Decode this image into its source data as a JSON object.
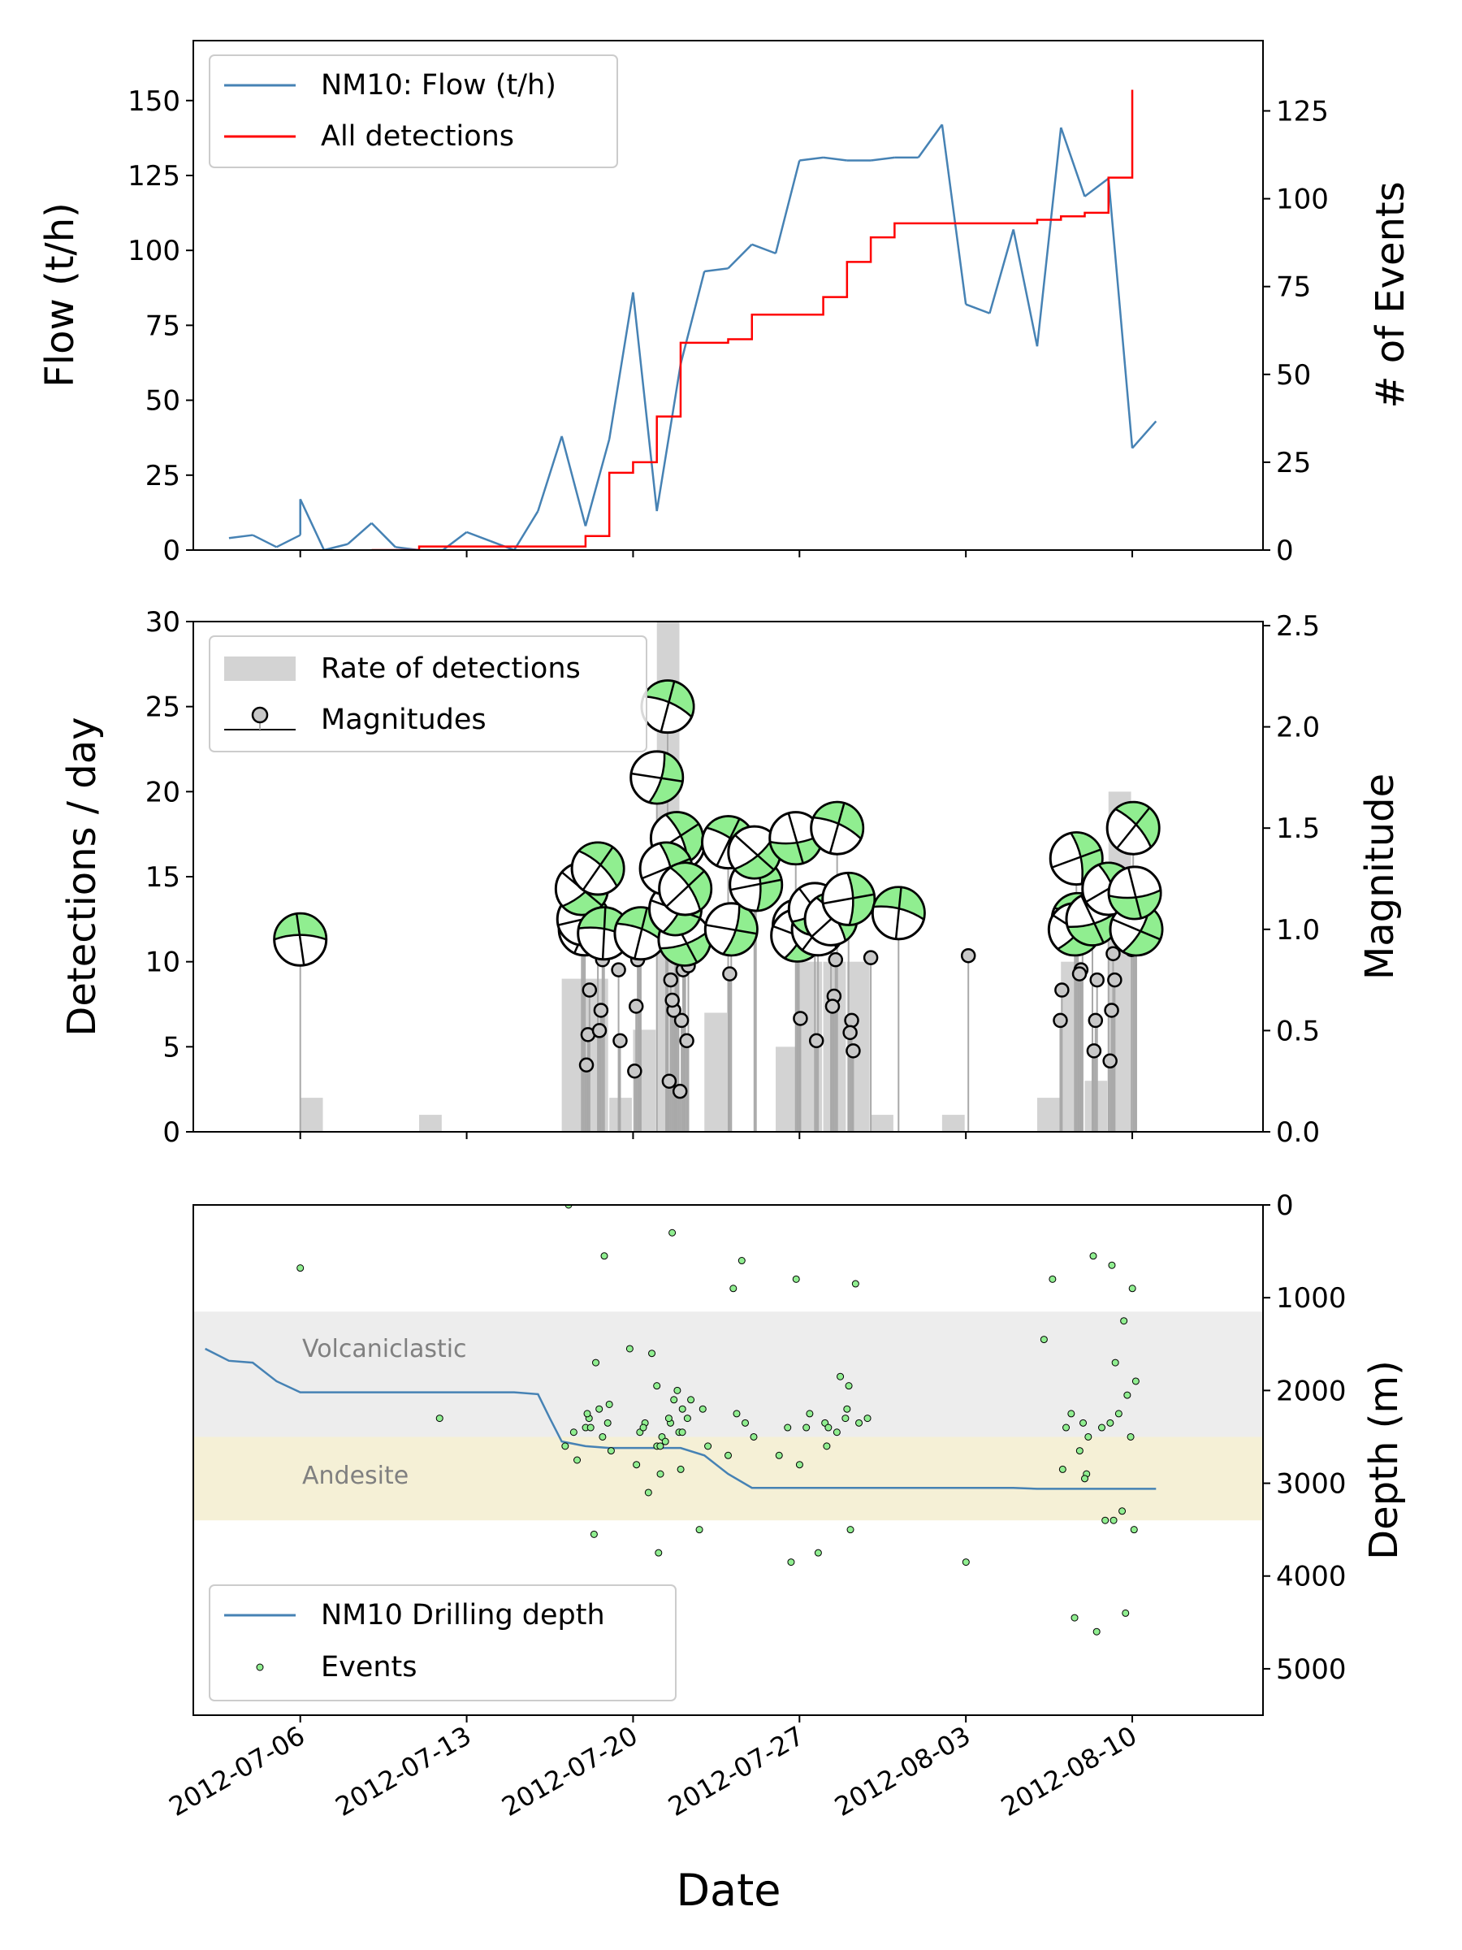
{
  "chart_data": [
    {
      "type": "line",
      "ylabel": "Flow (t/h)",
      "ylabel_right": "# of Events",
      "ylim": [
        0,
        170
      ],
      "ylim_right": [
        0,
        145
      ],
      "yticks": [
        "0",
        "25",
        "50",
        "75",
        "100",
        "125",
        "150"
      ],
      "yticks_right": [
        "0",
        "25",
        "50",
        "75",
        "100",
        "125"
      ],
      "legend": {
        "placement": "top-left",
        "items": [
          "NM10: Flow (t/h)",
          "All detections"
        ]
      },
      "colors": {
        "flow": "#4682b4",
        "detections": "#ff0000"
      },
      "series": [
        {
          "name": "NM10: Flow (t/h)",
          "axis": "left",
          "x": [
            "2012-07-03",
            "2012-07-04",
            "2012-07-05",
            "2012-07-06",
            "2012-07-06",
            "2012-07-07",
            "2012-07-08",
            "2012-07-09",
            "2012-07-10",
            "2012-07-11",
            "2012-07-12",
            "2012-07-13",
            "2012-07-14",
            "2012-07-15",
            "2012-07-16",
            "2012-07-17",
            "2012-07-18",
            "2012-07-19",
            "2012-07-20",
            "2012-07-21",
            "2012-07-22",
            "2012-07-23",
            "2012-07-24",
            "2012-07-25",
            "2012-07-26",
            "2012-07-27",
            "2012-07-28",
            "2012-07-29",
            "2012-07-30",
            "2012-07-31",
            "2012-08-01",
            "2012-08-02",
            "2012-08-03",
            "2012-08-04",
            "2012-08-05",
            "2012-08-06",
            "2012-08-07",
            "2012-08-08",
            "2012-08-09",
            "2012-08-10",
            "2012-08-11"
          ],
          "values": [
            4,
            5,
            1,
            5,
            17,
            0,
            2,
            9,
            1,
            0,
            0,
            6,
            3,
            0,
            13,
            38,
            8,
            37,
            86,
            13,
            62,
            93,
            94,
            102,
            99,
            130,
            131,
            130,
            130,
            131,
            131,
            142,
            82,
            79,
            107,
            68,
            141,
            118,
            124,
            34,
            43
          ]
        },
        {
          "name": "All detections",
          "axis": "right",
          "x": [
            "2012-07-09",
            "2012-07-11",
            "2012-07-17",
            "2012-07-18",
            "2012-07-19",
            "2012-07-19",
            "2012-07-20",
            "2012-07-21",
            "2012-07-22",
            "2012-07-23",
            "2012-07-24",
            "2012-07-25",
            "2012-07-26",
            "2012-07-27",
            "2012-07-28",
            "2012-07-29",
            "2012-07-30",
            "2012-07-31",
            "2012-08-01",
            "2012-08-02",
            "2012-08-03",
            "2012-08-04",
            "2012-08-05",
            "2012-08-06",
            "2012-08-07",
            "2012-08-08",
            "2012-08-09",
            "2012-08-10",
            "2012-08-10"
          ],
          "values": [
            0,
            1,
            1,
            4,
            20,
            22,
            25,
            38,
            59,
            59,
            60,
            67,
            67,
            67,
            72,
            82,
            89,
            93,
            93,
            93,
            93,
            93,
            93,
            94,
            95,
            96,
            106,
            111,
            131
          ]
        }
      ]
    },
    {
      "type": "bar",
      "ylabel": "Detections / day",
      "ylabel_right": "Magnitude",
      "ylim": [
        0,
        30
      ],
      "ylim_right": [
        0,
        2.52
      ],
      "yticks": [
        "0",
        "5",
        "10",
        "15",
        "20",
        "25",
        "30"
      ],
      "yticks_right": [
        "0.0",
        "0.5",
        "1.0",
        "1.5",
        "2.0",
        "2.5"
      ],
      "legend": {
        "placement": "top-left",
        "items": [
          "Rate of detections",
          "Magnitudes"
        ]
      },
      "colors": {
        "bars": "#d3d3d3",
        "stems": "#a9a9a9",
        "markers": "#c8c8c8",
        "beachball": "#90ee90"
      },
      "series": [
        {
          "name": "Rate of detections",
          "categories": [
            "2012-07-06",
            "2012-07-11",
            "2012-07-17",
            "2012-07-18",
            "2012-07-19",
            "2012-07-20",
            "2012-07-21",
            "2012-07-22",
            "2012-07-23",
            "2012-07-24",
            "2012-07-25",
            "2012-07-26",
            "2012-07-27",
            "2012-07-28",
            "2012-07-29",
            "2012-07-30",
            "2012-07-31",
            "2012-08-01",
            "2012-08-02",
            "2012-08-03",
            "2012-08-04",
            "2012-08-05",
            "2012-08-06",
            "2012-08-07",
            "2012-08-08",
            "2012-08-09",
            "2012-08-10"
          ],
          "values": [
            2,
            1,
            9,
            9,
            2,
            6,
            30,
            0,
            7,
            0,
            0,
            5,
            10,
            10,
            10,
            1,
            0,
            0,
            1,
            0,
            0,
            0,
            2,
            10,
            3,
            20,
            0
          ]
        },
        {
          "name": "Magnitudes",
          "x": [
            "2012-07-06",
            "2012-07-17",
            "2012-07-17",
            "2012-07-17",
            "2012-07-17",
            "2012-07-17",
            "2012-07-17",
            "2012-07-18",
            "2012-07-18",
            "2012-07-18",
            "2012-07-18",
            "2012-07-18",
            "2012-07-19",
            "2012-07-19",
            "2012-07-20",
            "2012-07-20",
            "2012-07-20",
            "2012-07-20",
            "2012-07-20",
            "2012-07-21",
            "2012-07-21",
            "2012-07-21",
            "2012-07-21",
            "2012-07-21",
            "2012-07-21",
            "2012-07-21",
            "2012-07-21",
            "2012-07-21",
            "2012-07-21",
            "2012-07-21",
            "2012-07-21",
            "2012-07-21",
            "2012-07-21",
            "2012-07-22",
            "2012-07-22",
            "2012-07-22",
            "2012-07-24",
            "2012-07-24",
            "2012-07-24",
            "2012-07-24",
            "2012-07-24",
            "2012-07-26",
            "2012-07-26",
            "2012-07-26",
            "2012-07-26",
            "2012-07-27",
            "2012-07-27",
            "2012-07-27",
            "2012-07-28",
            "2012-07-28",
            "2012-07-28",
            "2012-07-28",
            "2012-07-28",
            "2012-07-29",
            "2012-07-29",
            "2012-07-29",
            "2012-07-29",
            "2012-07-30",
            "2012-07-30",
            "2012-08-02",
            "2012-08-06",
            "2012-08-06",
            "2012-08-07",
            "2012-08-07",
            "2012-08-07",
            "2012-08-07",
            "2012-08-07",
            "2012-08-07",
            "2012-08-08",
            "2012-08-08",
            "2012-08-08",
            "2012-08-08",
            "2012-08-09",
            "2012-08-09",
            "2012-08-09",
            "2012-08-09",
            "2012-08-09",
            "2012-08-09",
            "2012-08-09",
            "2012-08-09",
            "2012-08-09"
          ],
          "values": [
            0.95,
            0.7,
            0.48,
            0.33,
            1.0,
            1.05,
            1.2,
            0.98,
            0.85,
            0.6,
            0.5,
            1.3,
            0.45,
            0.8,
            0.98,
            0.92,
            0.85,
            0.62,
            0.3,
            1.75,
            0.95,
            0.8,
            0.55,
            0.2,
            1.42,
            1.45,
            1.1,
            0.6,
            0.65,
            0.75,
            0.25,
            2.1,
            1.3,
            0.82,
            0.45,
            1.2,
            1.0,
            0.78,
            1.43,
            1.22,
            1.38,
            0.56,
            1.02,
            0.97,
            1.45,
            1.0,
            0.45,
            1.1,
            1.5,
            0.85,
            0.67,
            0.62,
            1.05,
            0.4,
            0.55,
            0.49,
            1.15,
            0.86,
            1.08,
            0.87,
            0.7,
            0.55,
            1.05,
            0.8,
            0.78,
            1.05,
            1.35,
            1.0,
            0.75,
            0.55,
            0.4,
            1.05,
            0.75,
            0.88,
            0.6,
            0.35,
            1.2,
            1.0,
            1.18,
            1.5,
            0.9
          ]
        }
      ]
    },
    {
      "type": "scatter",
      "xlabel": "Date",
      "ylabel_right": "Depth (m)",
      "ylim": [
        0,
        5500
      ],
      "y_inverted": true,
      "yticks_right": [
        "0",
        "1000",
        "2000",
        "3000",
        "4000",
        "5000"
      ],
      "xticks": [
        "2012-07-06",
        "2012-07-13",
        "2012-07-20",
        "2012-07-27",
        "2012-08-03",
        "2012-08-10"
      ],
      "xlim": [
        "2012-07-01T12:00",
        "2012-08-15T12:00"
      ],
      "zones": [
        {
          "label": "Volcaniclastic",
          "top": 1150,
          "bottom": 2500,
          "color": "#ededed"
        },
        {
          "label": "Andesite",
          "top": 2500,
          "bottom": 3400,
          "color": "#f5f0d6"
        }
      ],
      "legend": {
        "placement": "bottom-left",
        "items": [
          "NM10 Drilling depth",
          "Events"
        ]
      },
      "colors": {
        "drilling": "#4682b4",
        "events": "#90ee90"
      },
      "series": [
        {
          "name": "NM10 Drilling depth",
          "x": [
            "2012-07-02",
            "2012-07-03",
            "2012-07-04",
            "2012-07-05",
            "2012-07-06",
            "2012-07-07",
            "2012-07-08",
            "2012-07-09",
            "2012-07-10",
            "2012-07-11",
            "2012-07-12",
            "2012-07-13",
            "2012-07-14",
            "2012-07-15",
            "2012-07-16",
            "2012-07-16T12:00",
            "2012-07-17",
            "2012-07-18",
            "2012-07-19",
            "2012-07-20",
            "2012-07-21",
            "2012-07-22",
            "2012-07-23",
            "2012-07-24",
            "2012-07-25",
            "2012-07-26",
            "2012-07-27",
            "2012-07-28",
            "2012-07-29",
            "2012-07-30",
            "2012-07-31",
            "2012-08-01",
            "2012-08-02",
            "2012-08-03",
            "2012-08-04",
            "2012-08-05",
            "2012-08-06",
            "2012-08-07",
            "2012-08-08",
            "2012-08-09",
            "2012-08-10",
            "2012-08-11"
          ],
          "values": [
            1550,
            1680,
            1700,
            1900,
            2020,
            2020,
            2020,
            2020,
            2020,
            2020,
            2020,
            2020,
            2020,
            2020,
            2040,
            2300,
            2550,
            2600,
            2620,
            2620,
            2620,
            2620,
            2700,
            2900,
            3050,
            3050,
            3050,
            3050,
            3050,
            3050,
            3050,
            3050,
            3050,
            3050,
            3050,
            3050,
            3060,
            3060,
            3060,
            3060,
            3060,
            3060
          ]
        },
        {
          "name": "Events",
          "x": [
            "2012-07-06",
            "2012-07-11",
            "2012-07-17",
            "2012-07-17",
            "2012-07-17",
            "2012-07-17",
            "2012-07-17",
            "2012-07-17",
            "2012-07-18",
            "2012-07-18",
            "2012-07-18",
            "2012-07-18",
            "2012-07-18",
            "2012-07-18",
            "2012-07-18",
            "2012-07-18",
            "2012-07-18",
            "2012-07-19",
            "2012-07-19",
            "2012-07-20",
            "2012-07-20",
            "2012-07-20",
            "2012-07-20",
            "2012-07-20",
            "2012-07-20",
            "2012-07-20",
            "2012-07-20",
            "2012-07-21",
            "2012-07-21",
            "2012-07-21",
            "2012-07-21",
            "2012-07-21",
            "2012-07-21",
            "2012-07-21",
            "2012-07-21",
            "2012-07-21",
            "2012-07-21",
            "2012-07-21",
            "2012-07-21",
            "2012-07-21",
            "2012-07-22",
            "2012-07-22",
            "2012-07-22",
            "2012-07-22",
            "2012-07-22",
            "2012-07-22",
            "2012-07-24",
            "2012-07-24",
            "2012-07-24",
            "2012-07-24",
            "2012-07-24",
            "2012-07-24",
            "2012-07-26",
            "2012-07-26",
            "2012-07-26",
            "2012-07-26",
            "2012-07-26",
            "2012-07-27",
            "2012-07-27",
            "2012-07-27",
            "2012-07-27",
            "2012-07-28",
            "2012-07-28",
            "2012-07-28",
            "2012-07-28",
            "2012-07-28",
            "2012-07-28",
            "2012-07-29",
            "2012-07-29",
            "2012-07-29",
            "2012-07-29",
            "2012-07-29",
            "2012-08-02",
            "2012-08-06",
            "2012-08-06",
            "2012-08-07",
            "2012-08-07",
            "2012-08-07",
            "2012-08-07",
            "2012-08-07",
            "2012-08-07",
            "2012-08-07",
            "2012-08-07",
            "2012-08-08",
            "2012-08-08",
            "2012-08-08",
            "2012-08-08",
            "2012-08-08",
            "2012-08-09",
            "2012-08-09",
            "2012-08-09",
            "2012-08-09",
            "2012-08-09",
            "2012-08-09",
            "2012-08-09",
            "2012-08-09",
            "2012-08-09",
            "2012-08-09",
            "2012-08-09",
            "2012-08-09",
            "2012-08-09"
          ],
          "values": [
            680,
            2300,
            2450,
            2600,
            2400,
            2750,
            0,
            2300,
            550,
            1700,
            2250,
            2350,
            2200,
            2400,
            2650,
            2500,
            3550,
            2150,
            1550,
            2350,
            2800,
            2600,
            3100,
            2450,
            2900,
            1600,
            2400,
            3750,
            2450,
            2350,
            2500,
            2200,
            2100,
            2550,
            1950,
            2000,
            2300,
            2600,
            2850,
            300,
            2300,
            2600,
            3500,
            2100,
            2450,
            2200,
            600,
            900,
            2500,
            2350,
            2250,
            2700,
            800,
            2400,
            2700,
            2800,
            3850,
            2400,
            2600,
            3750,
            2250,
            2350,
            2300,
            2450,
            2400,
            1950,
            1850,
            850,
            2200,
            2300,
            2350,
            3500,
            3850,
            800,
            1450,
            2500,
            2650,
            2250,
            2850,
            2350,
            4450,
            2400,
            2900,
            2400,
            550,
            2950,
            3400,
            4600,
            650,
            900,
            1250,
            1700,
            1900,
            2050,
            2250,
            2350,
            2500,
            3300,
            3400,
            3500,
            4400
          ]
        }
      ]
    }
  ]
}
